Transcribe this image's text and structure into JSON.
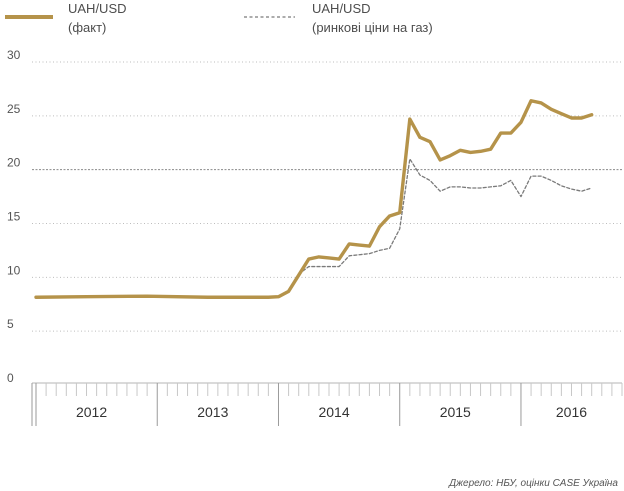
{
  "chart_data": {
    "type": "line",
    "title": "",
    "xlabel": "",
    "ylabel": "",
    "ylim": [
      0,
      30
    ],
    "yticks": [
      0,
      5,
      10,
      15,
      20,
      25,
      30
    ],
    "x_years": [
      "2012",
      "2013",
      "2014",
      "2015",
      "2016"
    ],
    "x_start": "2012-01",
    "x_end": "2016-11",
    "grid": "horizontal dotted, solid at 20",
    "legend": "top-left",
    "series": [
      {
        "name": "UAH/USD\n(факт)",
        "legend_line1": "UAH/USD",
        "legend_line2": "(факт)",
        "style": "solid",
        "color": "#b5934a",
        "points": [
          [
            "2012-01",
            8.15
          ],
          [
            "2012-06",
            8.2
          ],
          [
            "2012-12",
            8.25
          ],
          [
            "2013-06",
            8.15
          ],
          [
            "2013-12",
            8.15
          ],
          [
            "2014-01",
            8.2
          ],
          [
            "2014-02",
            8.7
          ],
          [
            "2014-03",
            10.2
          ],
          [
            "2014-04",
            11.7
          ],
          [
            "2014-05",
            11.9
          ],
          [
            "2014-06",
            11.8
          ],
          [
            "2014-07",
            11.7
          ],
          [
            "2014-08",
            13.1
          ],
          [
            "2014-09",
            13.0
          ],
          [
            "2014-10",
            12.9
          ],
          [
            "2014-11",
            14.7
          ],
          [
            "2014-12",
            15.7
          ],
          [
            "2015-01",
            16.0
          ],
          [
            "2015-02",
            24.7
          ],
          [
            "2015-03",
            23.0
          ],
          [
            "2015-04",
            22.6
          ],
          [
            "2015-05",
            20.9
          ],
          [
            "2015-06",
            21.3
          ],
          [
            "2015-07",
            21.8
          ],
          [
            "2015-08",
            21.6
          ],
          [
            "2015-09",
            21.7
          ],
          [
            "2015-10",
            21.9
          ],
          [
            "2015-11",
            23.4
          ],
          [
            "2015-12",
            23.4
          ],
          [
            "2016-01",
            24.4
          ],
          [
            "2016-02",
            26.4
          ],
          [
            "2016-03",
            26.2
          ],
          [
            "2016-04",
            25.6
          ],
          [
            "2016-05",
            25.2
          ],
          [
            "2016-06",
            24.8
          ],
          [
            "2016-07",
            24.8
          ],
          [
            "2016-08",
            25.1
          ]
        ]
      },
      {
        "name": "UAH/USD\n(ринкові ціни на газ)",
        "legend_line1": "UAH/USD",
        "legend_line2": "(ринкові ціни на газ)",
        "style": "dashed",
        "color": "#7a7a7a",
        "points": [
          [
            "2014-03",
            10.3
          ],
          [
            "2014-04",
            11.0
          ],
          [
            "2014-05",
            11.0
          ],
          [
            "2014-06",
            11.0
          ],
          [
            "2014-07",
            11.0
          ],
          [
            "2014-08",
            12.0
          ],
          [
            "2014-09",
            12.1
          ],
          [
            "2014-10",
            12.2
          ],
          [
            "2014-11",
            12.5
          ],
          [
            "2014-12",
            12.7
          ],
          [
            "2015-01",
            14.5
          ],
          [
            "2015-02",
            21.0
          ],
          [
            "2015-03",
            19.5
          ],
          [
            "2015-04",
            19.0
          ],
          [
            "2015-05",
            18.0
          ],
          [
            "2015-06",
            18.4
          ],
          [
            "2015-07",
            18.4
          ],
          [
            "2015-08",
            18.3
          ],
          [
            "2015-09",
            18.3
          ],
          [
            "2015-10",
            18.4
          ],
          [
            "2015-11",
            18.5
          ],
          [
            "2015-12",
            19.0
          ],
          [
            "2016-01",
            17.5
          ],
          [
            "2016-02",
            19.4
          ],
          [
            "2016-03",
            19.4
          ],
          [
            "2016-04",
            19.0
          ],
          [
            "2016-05",
            18.5
          ],
          [
            "2016-06",
            18.2
          ],
          [
            "2016-07",
            18.0
          ],
          [
            "2016-08",
            18.3
          ]
        ]
      }
    ]
  },
  "source": "Джерело: НБУ, оцінки CASE Україна"
}
